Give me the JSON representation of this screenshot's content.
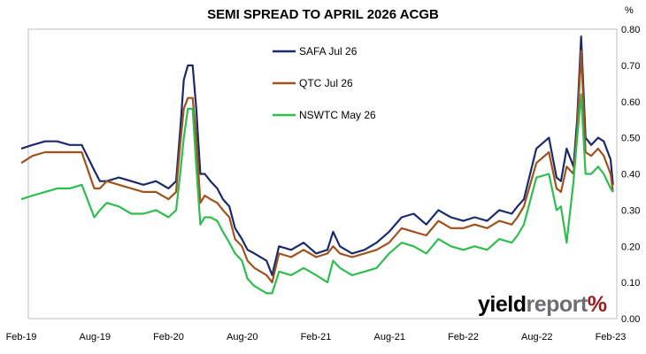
{
  "chart_data": {
    "type": "line",
    "title": "SEMI SPREAD TO APRIL 2026 ACGB",
    "unit_label": "%",
    "ylim": [
      0,
      0.8
    ],
    "y_ticks": [
      "0.00",
      "0.10",
      "0.20",
      "0.30",
      "0.40",
      "0.50",
      "0.60",
      "0.70",
      "0.80"
    ],
    "x_ticks": [
      "Feb-19",
      "Aug-19",
      "Feb-20",
      "Aug-20",
      "Feb-21",
      "Aug-21",
      "Feb-22",
      "Aug-22",
      "Feb-23"
    ],
    "y_axis_position": "right",
    "grid": false,
    "legend_position": "top-center",
    "watermark": {
      "part1": "yield",
      "part2": "report",
      "part3": "%"
    },
    "series": [
      {
        "name": "SAFA Jul 26",
        "color": "#1b2a6b",
        "x": [
          "2019-02-01",
          "2019-03-01",
          "2019-04-01",
          "2019-05-01",
          "2019-06-01",
          "2019-07-01",
          "2019-08-01",
          "2019-08-15",
          "2019-09-01",
          "2019-10-01",
          "2019-11-01",
          "2019-12-01",
          "2020-01-01",
          "2020-02-01",
          "2020-02-20",
          "2020-03-01",
          "2020-03-10",
          "2020-03-20",
          "2020-04-01",
          "2020-04-10",
          "2020-04-20",
          "2020-05-01",
          "2020-05-15",
          "2020-06-01",
          "2020-06-15",
          "2020-07-01",
          "2020-07-15",
          "2020-08-01",
          "2020-08-15",
          "2020-09-01",
          "2020-10-01",
          "2020-10-15",
          "2020-11-01",
          "2020-12-01",
          "2021-01-01",
          "2021-02-01",
          "2021-03-01",
          "2021-03-15",
          "2021-04-01",
          "2021-05-01",
          "2021-06-01",
          "2021-07-01",
          "2021-08-01",
          "2021-09-01",
          "2021-10-01",
          "2021-11-01",
          "2021-12-01",
          "2022-01-01",
          "2022-02-01",
          "2022-03-01",
          "2022-04-01",
          "2022-05-01",
          "2022-06-01",
          "2022-06-15",
          "2022-07-01",
          "2022-08-01",
          "2022-09-01",
          "2022-09-20",
          "2022-10-01",
          "2022-10-15",
          "2022-11-01",
          "2022-11-10",
          "2022-11-20",
          "2022-12-01",
          "2022-12-15",
          "2023-01-01",
          "2023-01-15",
          "2023-02-01",
          "2023-02-07"
        ],
        "values": [
          0.47,
          0.48,
          0.49,
          0.49,
          0.48,
          0.48,
          0.41,
          0.38,
          0.38,
          0.39,
          0.38,
          0.37,
          0.38,
          0.36,
          0.38,
          0.52,
          0.66,
          0.7,
          0.7,
          0.58,
          0.4,
          0.4,
          0.38,
          0.36,
          0.33,
          0.31,
          0.25,
          0.22,
          0.19,
          0.18,
          0.16,
          0.12,
          0.2,
          0.19,
          0.21,
          0.18,
          0.19,
          0.24,
          0.2,
          0.18,
          0.19,
          0.21,
          0.24,
          0.28,
          0.29,
          0.26,
          0.3,
          0.28,
          0.27,
          0.28,
          0.27,
          0.3,
          0.29,
          0.31,
          0.33,
          0.47,
          0.5,
          0.39,
          0.38,
          0.47,
          0.42,
          0.55,
          0.78,
          0.5,
          0.48,
          0.5,
          0.49,
          0.44,
          0.37
        ]
      },
      {
        "name": "QTC Jul 26",
        "color": "#a0521d",
        "x": [
          "2019-02-01",
          "2019-03-01",
          "2019-04-01",
          "2019-05-01",
          "2019-06-01",
          "2019-07-01",
          "2019-08-01",
          "2019-08-15",
          "2019-09-01",
          "2019-10-01",
          "2019-11-01",
          "2019-12-01",
          "2020-01-01",
          "2020-02-01",
          "2020-02-20",
          "2020-03-01",
          "2020-03-10",
          "2020-03-20",
          "2020-04-01",
          "2020-04-10",
          "2020-04-20",
          "2020-05-01",
          "2020-05-15",
          "2020-06-01",
          "2020-06-15",
          "2020-07-01",
          "2020-07-15",
          "2020-08-01",
          "2020-08-15",
          "2020-09-01",
          "2020-10-01",
          "2020-10-15",
          "2020-11-01",
          "2020-12-01",
          "2021-01-01",
          "2021-02-01",
          "2021-03-01",
          "2021-03-15",
          "2021-04-01",
          "2021-05-01",
          "2021-06-01",
          "2021-07-01",
          "2021-08-01",
          "2021-09-01",
          "2021-10-01",
          "2021-11-01",
          "2021-12-01",
          "2022-01-01",
          "2022-02-01",
          "2022-03-01",
          "2022-04-01",
          "2022-05-01",
          "2022-06-01",
          "2022-06-15",
          "2022-07-01",
          "2022-08-01",
          "2022-09-01",
          "2022-09-20",
          "2022-10-01",
          "2022-10-15",
          "2022-11-01",
          "2022-11-10",
          "2022-11-20",
          "2022-12-01",
          "2022-12-15",
          "2023-01-01",
          "2023-01-15",
          "2023-02-01",
          "2023-02-07"
        ],
        "values": [
          0.43,
          0.45,
          0.46,
          0.46,
          0.46,
          0.46,
          0.36,
          0.36,
          0.38,
          0.37,
          0.36,
          0.35,
          0.35,
          0.33,
          0.35,
          0.48,
          0.58,
          0.61,
          0.61,
          0.5,
          0.32,
          0.34,
          0.33,
          0.32,
          0.3,
          0.28,
          0.22,
          0.2,
          0.16,
          0.14,
          0.12,
          0.1,
          0.18,
          0.17,
          0.19,
          0.17,
          0.18,
          0.2,
          0.18,
          0.17,
          0.18,
          0.19,
          0.21,
          0.25,
          0.24,
          0.23,
          0.27,
          0.25,
          0.25,
          0.26,
          0.25,
          0.27,
          0.26,
          0.28,
          0.31,
          0.43,
          0.46,
          0.36,
          0.35,
          0.42,
          0.4,
          0.52,
          0.74,
          0.46,
          0.45,
          0.47,
          0.45,
          0.4,
          0.35
        ]
      },
      {
        "name": "NSWTC May 26",
        "color": "#2ebd4e",
        "x": [
          "2019-02-01",
          "2019-03-01",
          "2019-04-01",
          "2019-05-01",
          "2019-06-01",
          "2019-07-01",
          "2019-08-01",
          "2019-08-15",
          "2019-09-01",
          "2019-10-01",
          "2019-11-01",
          "2019-12-01",
          "2020-01-01",
          "2020-02-01",
          "2020-02-20",
          "2020-03-01",
          "2020-03-10",
          "2020-03-20",
          "2020-04-01",
          "2020-04-10",
          "2020-04-20",
          "2020-05-01",
          "2020-05-15",
          "2020-06-01",
          "2020-06-15",
          "2020-07-01",
          "2020-07-15",
          "2020-08-01",
          "2020-08-15",
          "2020-09-01",
          "2020-10-01",
          "2020-10-15",
          "2020-11-01",
          "2020-12-01",
          "2021-01-01",
          "2021-02-01",
          "2021-03-01",
          "2021-03-15",
          "2021-04-01",
          "2021-05-01",
          "2021-06-01",
          "2021-07-01",
          "2021-08-01",
          "2021-09-01",
          "2021-10-01",
          "2021-11-01",
          "2021-12-01",
          "2022-01-01",
          "2022-02-01",
          "2022-03-01",
          "2022-04-01",
          "2022-05-01",
          "2022-06-01",
          "2022-06-15",
          "2022-07-01",
          "2022-08-01",
          "2022-09-01",
          "2022-09-20",
          "2022-10-01",
          "2022-10-15",
          "2022-11-01",
          "2022-11-10",
          "2022-11-20",
          "2022-12-01",
          "2022-12-15",
          "2023-01-01",
          "2023-01-15",
          "2023-02-01",
          "2023-02-07"
        ],
        "values": [
          0.33,
          0.34,
          0.35,
          0.36,
          0.36,
          0.37,
          0.28,
          0.3,
          0.32,
          0.31,
          0.29,
          0.29,
          0.3,
          0.28,
          0.3,
          0.4,
          0.5,
          0.58,
          0.58,
          0.42,
          0.26,
          0.28,
          0.28,
          0.27,
          0.24,
          0.21,
          0.18,
          0.16,
          0.11,
          0.09,
          0.07,
          0.07,
          0.13,
          0.12,
          0.14,
          0.12,
          0.1,
          0.16,
          0.14,
          0.12,
          0.13,
          0.14,
          0.18,
          0.21,
          0.2,
          0.18,
          0.22,
          0.2,
          0.19,
          0.2,
          0.19,
          0.22,
          0.21,
          0.23,
          0.26,
          0.39,
          0.4,
          0.3,
          0.31,
          0.21,
          0.38,
          0.5,
          0.62,
          0.4,
          0.4,
          0.42,
          0.4,
          0.36,
          0.35
        ]
      }
    ]
  }
}
